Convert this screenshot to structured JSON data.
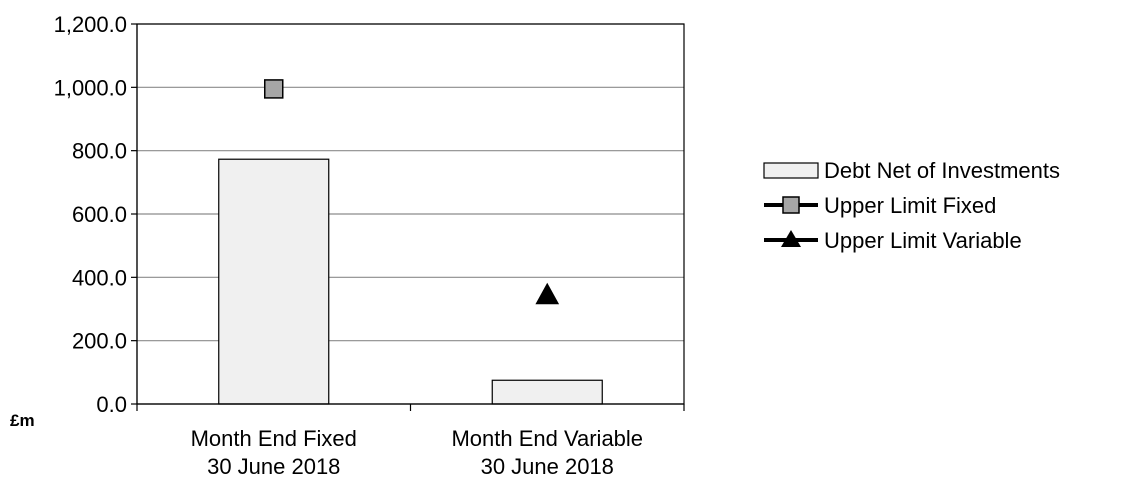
{
  "chart_data": {
    "type": "bar",
    "categories": [
      [
        "Month End Fixed",
        "30 June 2018"
      ],
      [
        "Month End Variable",
        "30 June 2018"
      ]
    ],
    "y_unit": "£m",
    "ylim": [
      0,
      1200
    ],
    "y_ticks": [
      0,
      200,
      400,
      600,
      800,
      1000,
      1200
    ],
    "y_tick_labels": [
      "0.0",
      "200.0",
      "400.0",
      "600.0",
      "800.0",
      "1,000.0",
      "1,200.0"
    ],
    "grid": true,
    "legend_position": "right",
    "series": [
      {
        "name": "Debt Net of Investments",
        "kind": "bar",
        "color": "#f0f0f0",
        "values": [
          773,
          75
        ]
      },
      {
        "name": "Upper Limit Fixed",
        "kind": "marker",
        "marker": "square",
        "color": "#a6a6a6",
        "values": [
          995,
          null
        ]
      },
      {
        "name": "Upper Limit Variable",
        "kind": "marker",
        "marker": "triangle",
        "color": "#000000",
        "values": [
          null,
          345
        ]
      }
    ]
  }
}
